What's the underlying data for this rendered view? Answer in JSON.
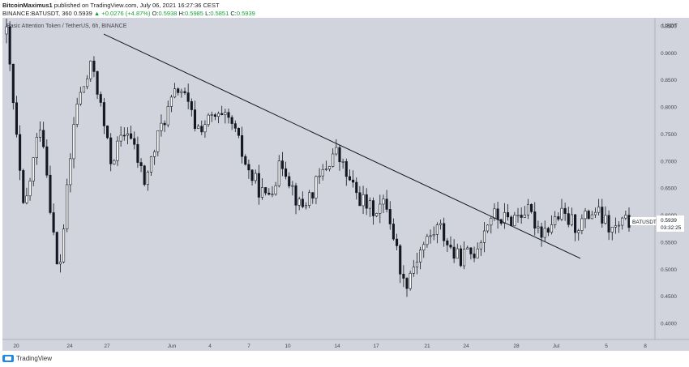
{
  "header": {
    "author": "BitcoinMaximus1",
    "published_text": "published on TradingView.com, July 06, 2021 16:27:36 CEST",
    "symbol_line": "BINANCE:BATUSDT, 360",
    "price": "0.5939",
    "change_arrow": "▲",
    "change": "+0.0276 (+4.87%)",
    "o_label": "O:",
    "o_val": "0.5938",
    "h_label": "H:",
    "h_val": "0.5985",
    "l_label": "L:",
    "l_val": "0.5851",
    "c_label": "C:",
    "c_val": "0.5939"
  },
  "chart_title": "Basic Attention Token / TetherUS, 6h, BINANCE",
  "chart_data": {
    "type": "candlestick",
    "yunit": "USDT",
    "ylim": [
      0.37,
      0.965
    ],
    "yticks": [
      "0.9500",
      "0.9000",
      "0.8500",
      "0.8000",
      "0.7500",
      "0.7000",
      "0.6500",
      "0.6000",
      "0.5500",
      "0.5000",
      "0.4500",
      "0.4000"
    ],
    "ytick_values": [
      0.95,
      0.9,
      0.85,
      0.8,
      0.75,
      0.7,
      0.65,
      0.6,
      0.55,
      0.5,
      0.45,
      0.4
    ],
    "xticks": [
      "20",
      "24",
      "27",
      "Jun",
      "4",
      "7",
      "10",
      "14",
      "17",
      "21",
      "24",
      "28",
      "Jul",
      "5",
      "8"
    ],
    "trendline": {
      "from": {
        "label": "27",
        "y": 0.935
      },
      "to": {
        "label": "Jul",
        "y": 0.52
      }
    },
    "last_price_label": "BATUSDT",
    "last_price": "0.5939",
    "countdown": "03:32:25",
    "anchors": [
      0.935,
      0.6,
      0.78,
      0.48,
      0.8,
      0.88,
      0.7,
      0.76,
      0.66,
      0.77,
      0.84,
      0.76,
      0.78,
      0.77,
      0.68,
      0.63,
      0.7,
      0.61,
      0.66,
      0.72,
      0.65,
      0.61,
      0.62,
      0.47,
      0.54,
      0.58,
      0.52,
      0.53,
      0.6,
      0.59,
      0.61,
      0.57,
      0.6,
      0.58,
      0.61,
      0.57,
      0.59
    ],
    "colors": {
      "up": "#ffffff",
      "down": "#131722",
      "wick": "#131722",
      "bg": "#d1d4dc",
      "line": "#131722"
    }
  },
  "footer": {
    "brand": "TradingView"
  }
}
